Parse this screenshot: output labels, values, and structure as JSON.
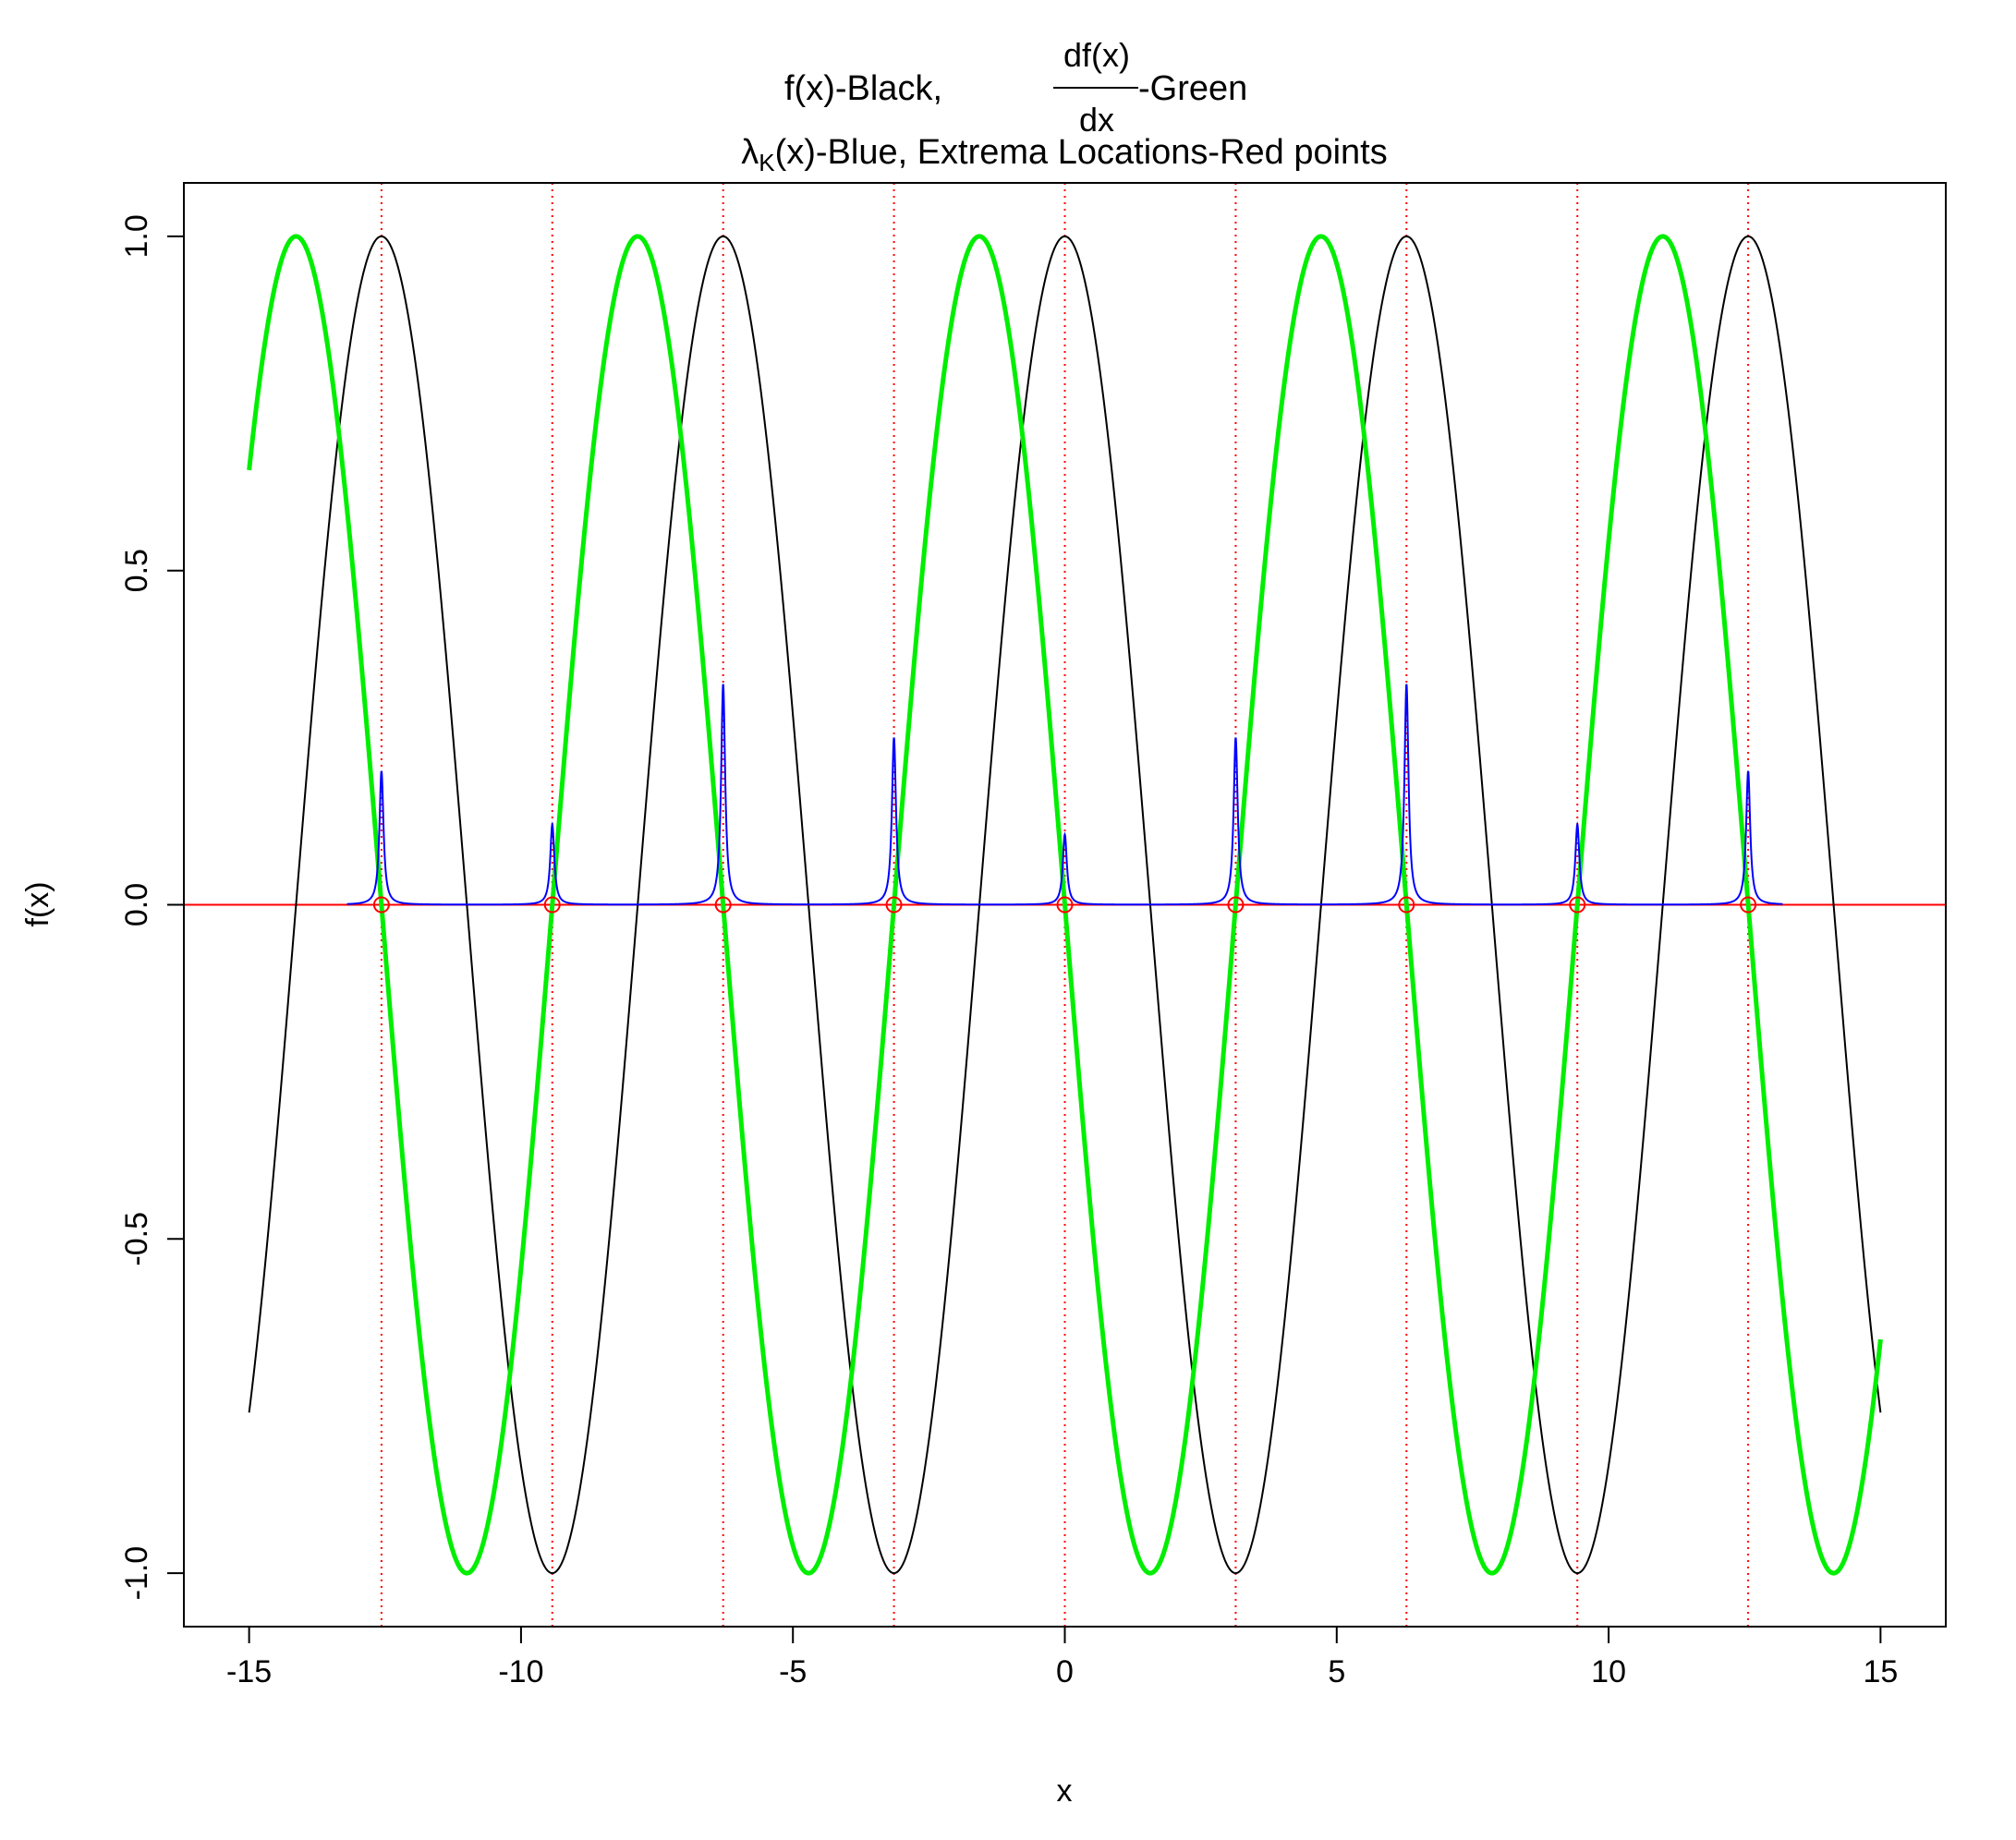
{
  "chart_data": {
    "type": "line",
    "title": {
      "line1_left": "f(x)-Black,",
      "frac_numerator": "df(x)",
      "frac_denominator": "dx",
      "line1_right": "-Green",
      "line2_lambda": "λ",
      "line2_sub": "K",
      "line2_rest": "(x)-Blue, Extrema Locations-Red points"
    },
    "xlabel": "x",
    "ylabel": "f(x)",
    "xlim": [
      -16.2,
      16.2
    ],
    "ylim": [
      -1.08,
      1.08
    ],
    "x_ticks": [
      -15,
      -10,
      -5,
      0,
      5,
      10,
      15
    ],
    "x_tick_labels": [
      "-15",
      "-10",
      "-5",
      "0",
      "5",
      "10",
      "15"
    ],
    "y_ticks": [
      -1.0,
      -0.5,
      0.0,
      0.5,
      1.0
    ],
    "y_tick_labels": [
      "-1.0",
      "-0.5",
      "0.0",
      "0.5",
      "1.0"
    ],
    "grid": false,
    "legend": "none",
    "series": [
      {
        "function": "cos(x)",
        "x_range": [
          -15,
          15
        ],
        "color": "#000000"
      },
      {
        "function": "-sin(x)",
        "x_range": [
          -15,
          15
        ],
        "color": "#00ee00"
      },
      {
        "function": "peaks at extrema",
        "color": "#0000ff",
        "peaks": [
          {
            "x": -12.566,
            "height": 0.2
          },
          {
            "x": -9.425,
            "height": 0.12
          },
          {
            "x": -6.283,
            "height": 0.33
          },
          {
            "x": -3.142,
            "height": 0.25
          },
          {
            "x": 0.0,
            "height": 0.105
          },
          {
            "x": 3.142,
            "height": 0.25
          },
          {
            "x": 6.283,
            "height": 0.33
          },
          {
            "x": 9.425,
            "height": 0.12
          },
          {
            "x": 12.566,
            "height": 0.2
          }
        ]
      }
    ],
    "extrema_points": {
      "color": "#ff0000",
      "x": [
        -12.566,
        -9.425,
        -6.283,
        -3.142,
        0.0,
        3.142,
        6.283,
        9.425,
        12.566
      ],
      "y": 0
    },
    "hline_y": 0
  }
}
